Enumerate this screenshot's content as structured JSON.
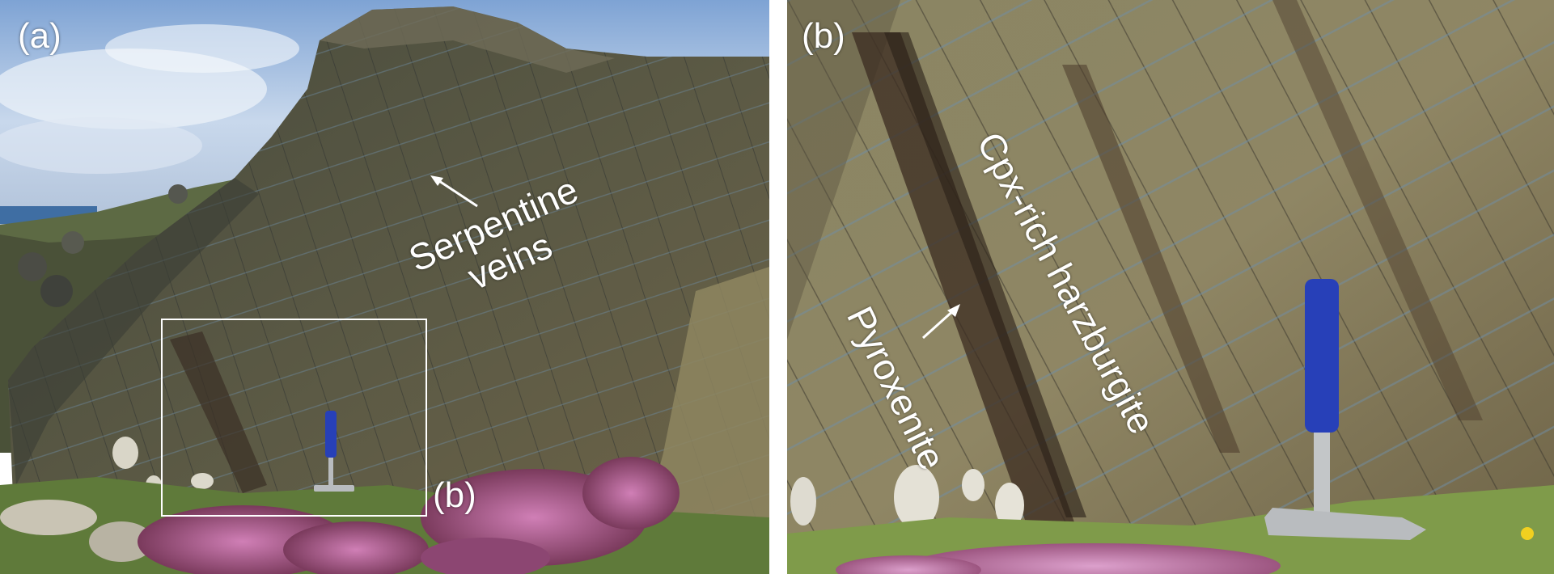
{
  "panel_a": {
    "letter": "(a)",
    "label_serpentine_line1": "Serpentine",
    "label_serpentine_line2": "veins",
    "inset_letter": "(b)"
  },
  "panel_b": {
    "letter": "(b)",
    "label_cpx": "Cpx-rich harzburgite",
    "label_pyroxenite": "Pyroxenite"
  },
  "colors": {
    "sky": "#9fbbe0",
    "rock": "#5f5d44",
    "rock_light": "#8e8660",
    "heather": "#b7659d",
    "hammer_handle": "#2740b8",
    "hammer_head": "#b9bcbf"
  }
}
